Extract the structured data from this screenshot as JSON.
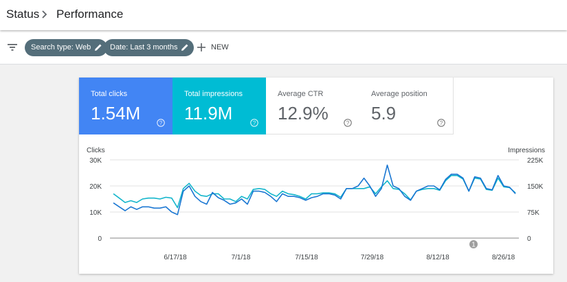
{
  "header": {
    "breadcrumb_root": "Status",
    "page_title": "Performance"
  },
  "filters": {
    "search_type": "Search type: Web",
    "date": "Date: Last 3 months",
    "new_label": "NEW"
  },
  "metrics": [
    {
      "label": "Total clicks",
      "value": "1.54M",
      "color": "#4285f4"
    },
    {
      "label": "Total impressions",
      "value": "11.9M",
      "color": "#00bcd4"
    },
    {
      "label": "Average CTR",
      "value": "12.9%"
    },
    {
      "label": "Average position",
      "value": "5.9"
    }
  ],
  "chart_data": {
    "type": "line",
    "left_axis_label": "Clicks",
    "right_axis_label": "Impressions",
    "left_ticks": [
      "0",
      "10K",
      "20K",
      "30K"
    ],
    "right_ticks": [
      "0",
      "75K",
      "150K",
      "225K"
    ],
    "ylim_left": [
      0,
      30000
    ],
    "ylim_right": [
      0,
      225000
    ],
    "x_labels": [
      "6/17/18",
      "7/1/18",
      "7/15/18",
      "7/29/18",
      "8/12/18",
      "8/26/18"
    ],
    "annotation": "1",
    "series": [
      {
        "axis": "left",
        "color": "#1976d2",
        "values": [
          13500,
          12000,
          10500,
          12000,
          11000,
          12000,
          12000,
          11500,
          11500,
          12000,
          10000,
          9000,
          18000,
          20000,
          16000,
          14000,
          13000,
          17500,
          15500,
          14500,
          13000,
          13500,
          15000,
          13000,
          18000,
          18000,
          17500,
          16000,
          14000,
          17000,
          16000,
          16000,
          15500,
          14500,
          15500,
          16000,
          17000,
          17000,
          16500,
          15000,
          19000,
          19000,
          20000,
          23000,
          20000,
          16000,
          19000,
          28000,
          20000,
          19000,
          16000,
          14500,
          18000,
          19000,
          20000,
          20000,
          18500,
          22500,
          24500,
          24500,
          23000,
          18000,
          23500,
          23000,
          19000,
          18500,
          24000,
          20000,
          19500,
          17000
        ]
      },
      {
        "axis": "right",
        "color": "#12b5cb",
        "values": [
          127500,
          115000,
          102500,
          107500,
          102500,
          112500,
          115000,
          115000,
          112500,
          117500,
          115000,
          87500,
          142500,
          157500,
          135000,
          122500,
          120000,
          127500,
          127500,
          112500,
          112500,
          105000,
          120000,
          112500,
          140000,
          142500,
          140000,
          127500,
          120000,
          135000,
          127500,
          125000,
          120000,
          112500,
          127500,
          127500,
          130000,
          130000,
          127500,
          117500,
          142500,
          142500,
          142500,
          142500,
          147500,
          127500,
          147500,
          165000,
          142500,
          140000,
          127500,
          110000,
          135000,
          140000,
          142500,
          142500,
          137500,
          165000,
          180000,
          180000,
          170000,
          135000,
          172500,
          170000,
          140000,
          137500,
          172500,
          147500,
          145000,
          130000
        ]
      }
    ]
  }
}
